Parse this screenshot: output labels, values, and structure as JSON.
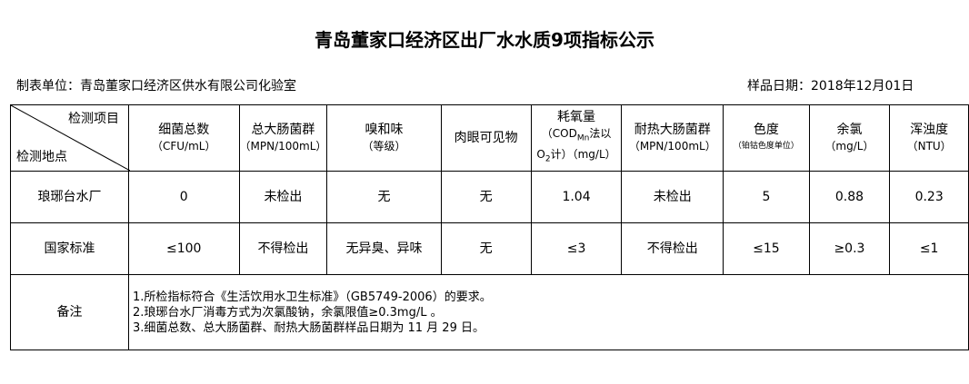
{
  "title": "青岛董家口经济区出厂水水质9项指标公示",
  "unit": "制表单位：青岛董家口经济区供水有限公司化验室",
  "date": "样品日期：2018年12月01日",
  "header": {
    "item_label": "检测项目",
    "location_label": "检测地点",
    "columns": [
      {
        "name": "细菌总数",
        "unit": "（CFU/mL）"
      },
      {
        "name": "总大肠菌群",
        "unit": "（MPN/100mL）"
      },
      {
        "name": "嗅和味",
        "unit": "（等级）"
      },
      {
        "name": "肉眼可见物",
        "unit": ""
      },
      {
        "name": "耗氧量",
        "unit": "（COD",
        "unit_sub": "Mn",
        "unit2": "法以",
        "unit3": "O",
        "unit3_sub": "2",
        "unit4": "计）（mg/L）"
      },
      {
        "name": "耐热大肠菌群",
        "unit": "（MPN/100mL）"
      },
      {
        "name": "色度",
        "unit": "（铂钴色度单位）"
      },
      {
        "name": "余氯",
        "unit": "（mg/L）"
      },
      {
        "name": "浑浊度",
        "unit": "（NTU）"
      }
    ]
  },
  "rows": [
    {
      "label": "琅琊台水厂",
      "values": [
        "0",
        "未检出",
        "无",
        "无",
        "1.04",
        "未检出",
        "5",
        "0.88",
        "0.23"
      ]
    },
    {
      "label": "国家标准",
      "values": [
        "≤100",
        "不得检出",
        "无异臭、异味",
        "无",
        "≤3",
        "不得检出",
        "≤15",
        "≥0.3",
        "≤1"
      ]
    }
  ],
  "notes": {
    "label": "备注",
    "lines": [
      "1.所检指标符合《生活饮用水卫生标准》（GB5749-2006）的要求。",
      "2.琅琊台水厂消毒方式为次氯酸钠，余氯限值≥0.3mg/L 。",
      "3.细菌总数、总大肠菌群、耐热大肠菌群样品日期为 11 月 29 日。"
    ]
  }
}
